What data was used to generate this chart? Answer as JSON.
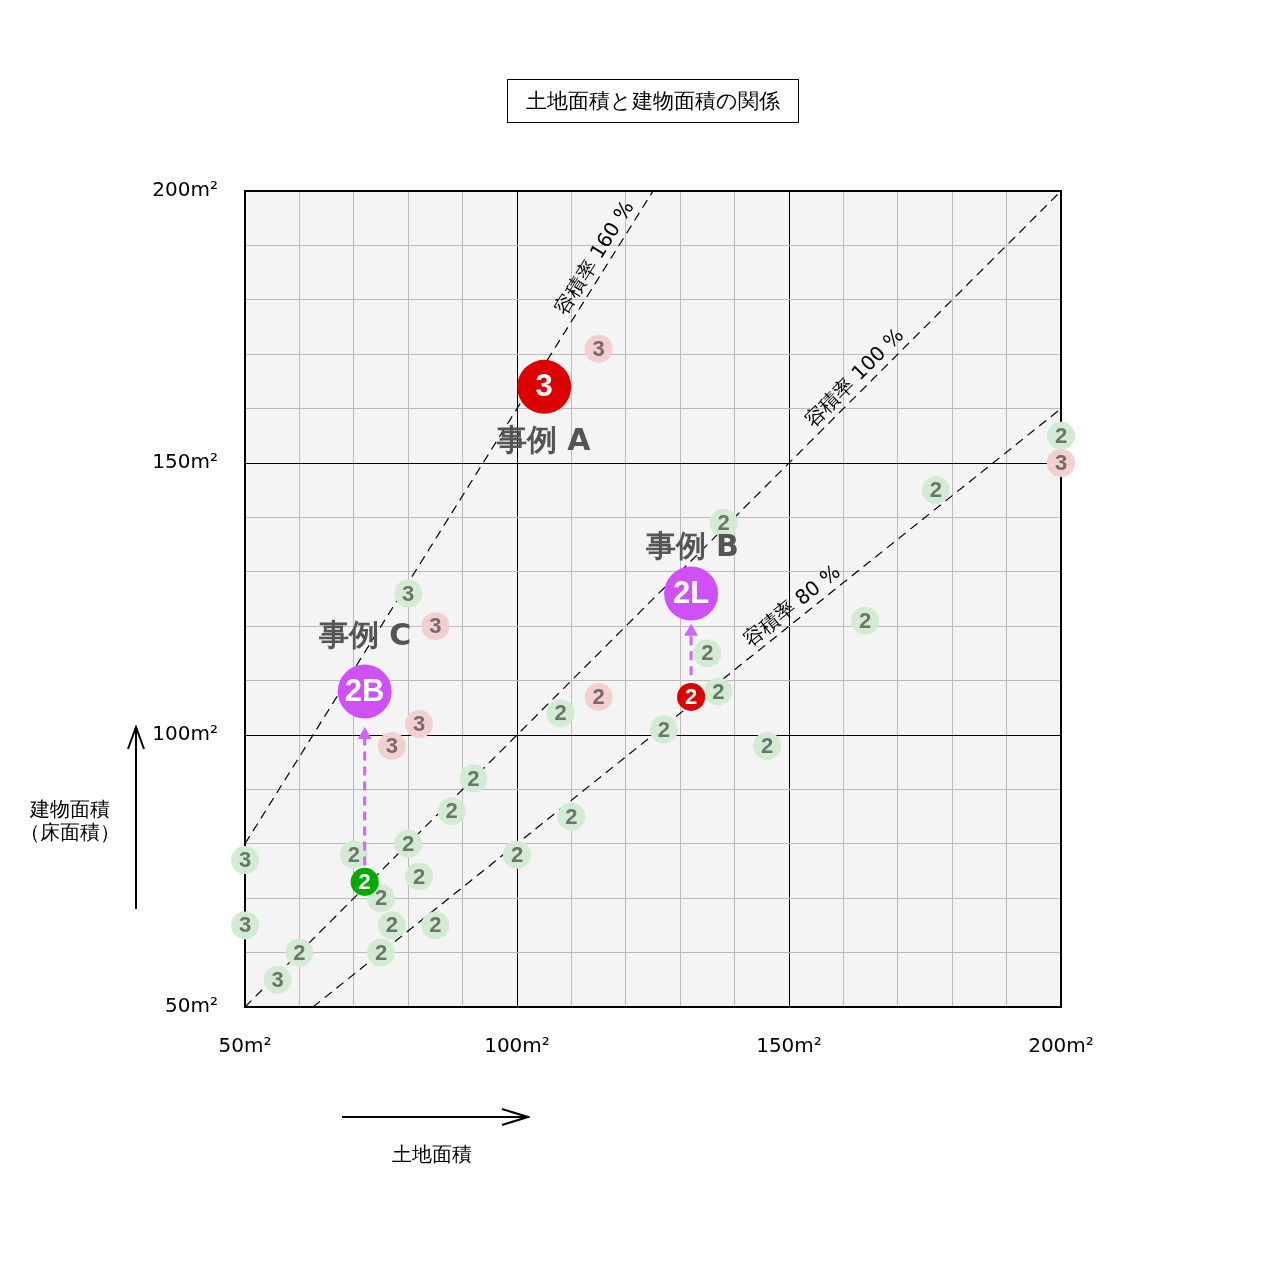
{
  "chart_data": {
    "type": "scatter",
    "title": "土地面積と建物面積の関係",
    "xlabel": "土地面積",
    "ylabel": "建物面積（床面積）",
    "xlim": [
      50,
      200
    ],
    "ylim": [
      50,
      200
    ],
    "xticks": [
      {
        "value": 50,
        "label": "50m²"
      },
      {
        "value": 60,
        "label": null
      },
      {
        "value": 70,
        "label": null
      },
      {
        "value": 80,
        "label": null
      },
      {
        "value": 90,
        "label": null
      },
      {
        "value": 100,
        "label": "100m²"
      },
      {
        "value": 110,
        "label": null
      },
      {
        "value": 120,
        "label": null
      },
      {
        "value": 130,
        "label": null
      },
      {
        "value": 140,
        "label": null
      },
      {
        "value": 150,
        "label": "150m²"
      },
      {
        "value": 160,
        "label": null
      },
      {
        "value": 170,
        "label": null
      },
      {
        "value": 180,
        "label": null
      },
      {
        "value": 190,
        "label": null
      },
      {
        "value": 200,
        "label": "200m²"
      }
    ],
    "yticks": [
      {
        "value": 50,
        "label": "50m²"
      },
      {
        "value": 60,
        "label": null
      },
      {
        "value": 70,
        "label": null
      },
      {
        "value": 80,
        "label": null
      },
      {
        "value": 90,
        "label": null
      },
      {
        "value": 100,
        "label": "100m²"
      },
      {
        "value": 110,
        "label": null
      },
      {
        "value": 120,
        "label": null
      },
      {
        "value": 130,
        "label": null
      },
      {
        "value": 140,
        "label": null
      },
      {
        "value": 150,
        "label": "150m²"
      },
      {
        "value": 160,
        "label": null
      },
      {
        "value": 170,
        "label": null
      },
      {
        "value": 180,
        "label": null
      },
      {
        "value": 190,
        "label": null
      },
      {
        "value": 200,
        "label": "200m²"
      }
    ],
    "grid": true,
    "marker": "circle",
    "annotations": [
      "事例 A",
      "事例 B",
      "事例 C",
      {
        "text": "3",
        "x": 80,
        "y": 126
      },
      {
        "text": "2",
        "x": 92,
        "y": 92
      },
      {
        "text": "2",
        "x": 88,
        "y": 86
      },
      {
        "text": "2",
        "x": 80,
        "y": 80
      },
      {
        "text": "2",
        "x": 70,
        "y": 78
      },
      {
        "text": "3",
        "x": 50,
        "y": 77
      },
      {
        "text": "2",
        "x": 82,
        "y": 74
      },
      {
        "text": "2",
        "x": 100,
        "y": 78
      },
      {
        "text": "2",
        "x": 75,
        "y": 70
      },
      {
        "text": "3",
        "x": 50,
        "y": 65
      },
      {
        "text": "2",
        "x": 77,
        "y": 65
      },
      {
        "text": "2",
        "x": 85,
        "y": 65
      },
      {
        "text": "2",
        "x": 60,
        "y": 60
      },
      {
        "text": "2",
        "x": 75,
        "y": 60
      },
      {
        "text": "3",
        "x": 56,
        "y": 55
      },
      {
        "text": "2",
        "x": 110,
        "y": 85
      },
      {
        "text": "2",
        "x": 138,
        "y": 139
      },
      {
        "text": "2",
        "x": 135,
        "y": 115
      },
      {
        "text": "2",
        "x": 137,
        "y": 108
      },
      {
        "text": "2",
        "x": 108,
        "y": 104
      },
      {
        "text": "2",
        "x": 127,
        "y": 101
      },
      {
        "text": "2",
        "x": 146,
        "y": 98
      },
      {
        "text": "2",
        "x": 200,
        "y": 155
      },
      {
        "text": "2",
        "x": 177,
        "y": 145
      },
      {
        "text": "2",
        "x": 164,
        "y": 121
      },
      {
        "text": "3",
        "x": 115,
        "y": 171
      },
      {
        "text": "3",
        "x": 85,
        "y": 120
      },
      {
        "text": "3",
        "x": 82,
        "y": 102
      },
      {
        "text": "3",
        "x": 77,
        "y": 98
      },
      {
        "text": "2",
        "x": 115,
        "y": 107
      },
      {
        "text": "3",
        "x": 200,
        "y": 150
      },
      {
        "text": "3",
        "x": 105,
        "y": 164
      },
      {
        "text": "2L",
        "x": 132,
        "y": 126
      },
      {
        "text": "2",
        "x": 132,
        "y": 107
      },
      {
        "text": "2B",
        "x": 72,
        "y": 108
      },
      {
        "text": "2",
        "x": 72,
        "y": 73
      }
    ],
    "series": [
      {
        "type": "line",
        "name": "容積率 160 %",
        "color": "#000000",
        "line_style": "dashed",
        "marker": "none",
        "x": [
          50,
          125
        ],
        "values": [
          80,
          200
        ]
      },
      {
        "type": "line",
        "name": "容積率 100 %",
        "color": "#000000",
        "line_style": "dashed",
        "marker": "none",
        "x": [
          50,
          200
        ],
        "values": [
          50,
          200
        ]
      },
      {
        "type": "line",
        "name": "容積率 80 %",
        "color": "#000000",
        "line_style": "dashed",
        "marker": "none",
        "x": [
          62.5,
          200
        ],
        "values": [
          50,
          160
        ]
      },
      {
        "color": "#d3ebd3",
        "x": [
          80,
          92,
          88,
          80,
          70,
          50,
          82,
          100,
          75,
          50,
          77,
          85,
          60,
          75,
          56,
          110,
          138,
          135,
          137,
          108,
          127,
          146,
          200,
          177,
          164
        ],
        "values": [
          126,
          92,
          86,
          80,
          78,
          77,
          74,
          78,
          70,
          65,
          65,
          65,
          60,
          60,
          55,
          85,
          139,
          115,
          108,
          104,
          101,
          98,
          155,
          145,
          121
        ]
      },
      {
        "color": "#f2d0d0",
        "x": [
          115,
          85,
          82,
          77,
          115,
          200
        ],
        "values": [
          171,
          120,
          102,
          98,
          107,
          150
        ]
      },
      {
        "type": "line",
        "color": "#cc66ff",
        "line_style": "dashed",
        "marker": "triangle",
        "x": [
          72,
          72
        ],
        "values": [
          76,
          100
        ]
      },
      {
        "type": "line",
        "color": "#cc66ff",
        "line_style": "dashed",
        "marker": "triangle",
        "x": [
          132,
          132
        ],
        "values": [
          111,
          119
        ]
      },
      {
        "type": "bubble",
        "colors": [
          "#dd0000",
          "#d050f8",
          "#dd0000",
          "#d050f8",
          "#00aa00"
        ],
        "x": [
          105,
          132,
          132,
          72,
          72
        ],
        "values": [
          164,
          126,
          107,
          108,
          73
        ],
        "sizes": [
          1,
          1,
          0.27,
          1,
          0.27
        ]
      }
    ]
  }
}
